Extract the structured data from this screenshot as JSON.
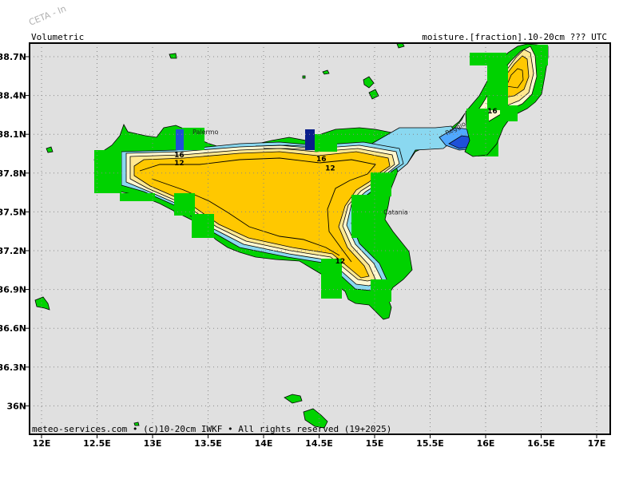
{
  "header": {
    "left_title": "Volumetric",
    "right_title": "moisture.[fraction].10-20cm  ???  UTC",
    "watermark": "CETA - In"
  },
  "footer": {
    "credit": "meteo-services.com • (c)10-20cm IWKF • All rights reserved (19+2025)"
  },
  "axes": {
    "lon_ticks": [
      "12E",
      "12.5E",
      "13E",
      "13.5E",
      "14E",
      "14.5E",
      "15E",
      "15.5E",
      "16E",
      "16.5E",
      "17E"
    ],
    "lat_ticks": [
      "38.7N",
      "38.4N",
      "38.1N",
      "37.8N",
      "37.5N",
      "37.2N",
      "36.9N",
      "36.6N",
      "36.3N",
      "36N"
    ]
  },
  "cities": [
    {
      "name": "Palermo",
      "lon": 13.36,
      "lat": 38.12
    },
    {
      "name": "Catania",
      "lon": 15.08,
      "lat": 37.5
    },
    {
      "name": "Reggio",
      "lon": 15.65,
      "lat": 38.11
    }
  ],
  "contour_labels": [
    {
      "text": "16",
      "lon": 13.24,
      "lat": 37.94
    },
    {
      "text": "12",
      "lon": 13.24,
      "lat": 37.88
    },
    {
      "text": "16",
      "lon": 14.52,
      "lat": 37.91
    },
    {
      "text": "12",
      "lon": 14.6,
      "lat": 37.84
    },
    {
      "text": "12",
      "lon": 14.69,
      "lat": 37.12
    },
    {
      "text": "16",
      "lon": 16.06,
      "lat": 38.28
    }
  ],
  "colors": {
    "land": "#00d200",
    "sea": "#e0e0e0",
    "orange": "#ffc800",
    "yellow_light": "#ffe890",
    "pale": "#fff8d0",
    "cyan": "#8ad8f0",
    "light_blue": "#50a8ff",
    "blue": "#1e50d8",
    "navy": "#0a1e8c"
  }
}
